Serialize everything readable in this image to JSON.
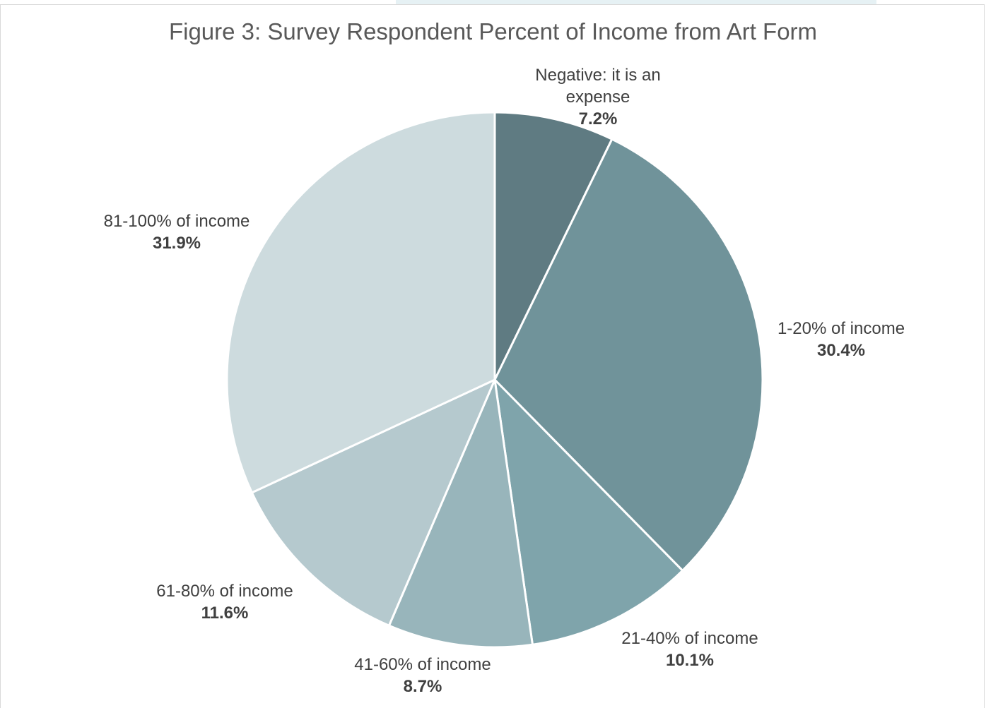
{
  "chart_data": {
    "type": "pie",
    "title": "Figure 3: Survey Respondent Percent of Income from Art Form",
    "slices": [
      {
        "category": "Negative: it is an expense",
        "value": 7.2,
        "display": "7.2%",
        "color": "#5f7b82"
      },
      {
        "category": "1-20% of income",
        "value": 30.4,
        "display": "30.4%",
        "color": "#70939a"
      },
      {
        "category": "21-40% of income",
        "value": 10.1,
        "display": "10.1%",
        "color": "#7fa4ab"
      },
      {
        "category": "41-60% of income",
        "value": 8.7,
        "display": "8.7%",
        "color": "#98b5bb"
      },
      {
        "category": "61-80% of income",
        "value": 11.6,
        "display": "11.6%",
        "color": "#b5c9ce"
      },
      {
        "category": "81-100% of income",
        "value": 31.9,
        "display": "31.9%",
        "color": "#cddbde"
      }
    ],
    "start_angle": "12 o'clock",
    "direction": "clockwise",
    "legend": "none (data labels on slices)"
  }
}
